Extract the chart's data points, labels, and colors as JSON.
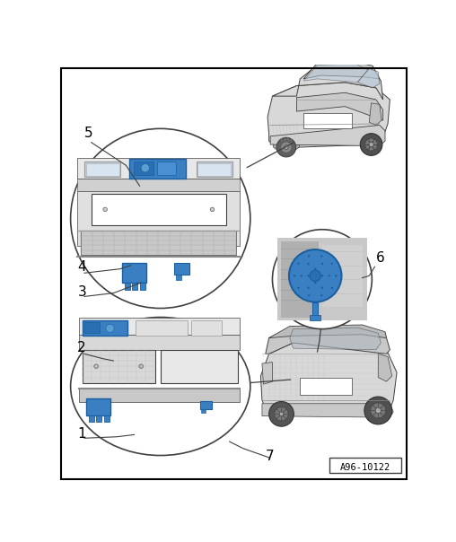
{
  "figure_id": "A96-10122",
  "bg": "#ffffff",
  "border": "#000000",
  "lc": "#404040",
  "car_fill": "#d8d8d8",
  "car_dark": "#a0a0a0",
  "car_darker": "#707070",
  "blue": "#3a7fc1",
  "blue_dark": "#1a5fa0",
  "blue_light": "#5a9fd0",
  "light_blue": "#c0ccdd",
  "white": "#ffffff",
  "plate_fill": "#e8e8e8",
  "bumper_fill": "#c0c0c0",
  "dashed": "#888888",
  "fig_w": 5.08,
  "fig_h": 6.04,
  "dpi": 100
}
